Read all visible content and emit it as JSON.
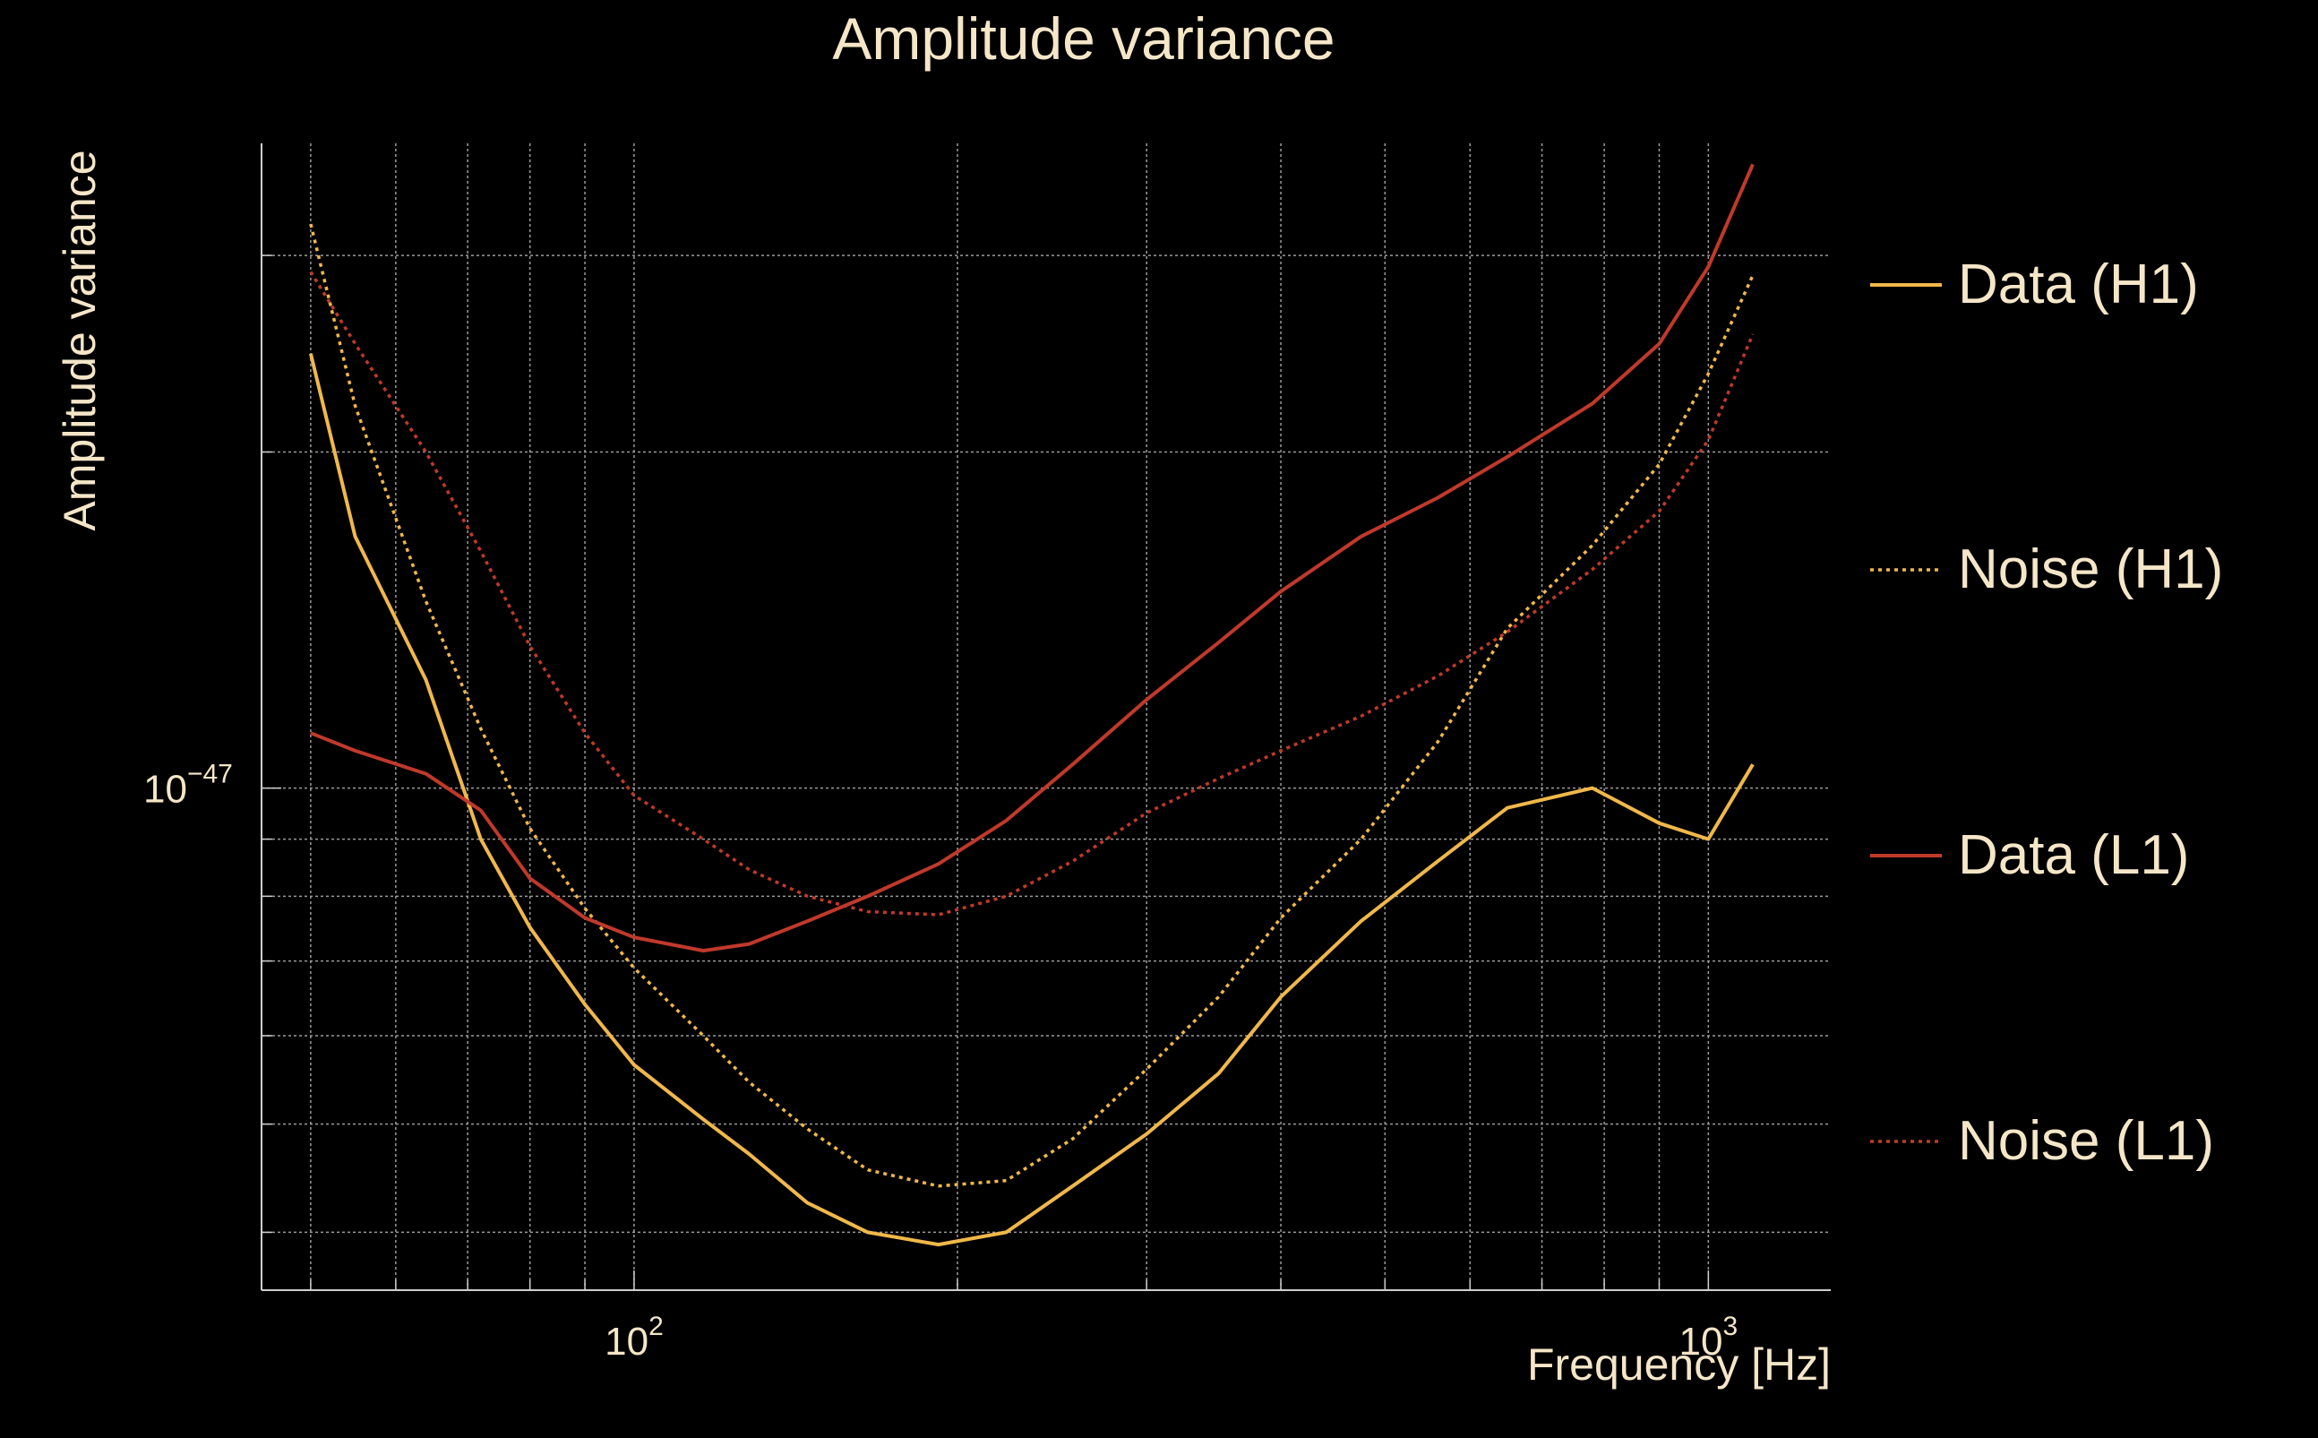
{
  "chart_data": {
    "type": "line",
    "title": "Amplitude variance",
    "xlabel": "Frequency [Hz]",
    "ylabel": "Amplitude variance",
    "x_scale": "log",
    "y_scale": "log",
    "xlim": [
      45,
      1300
    ],
    "ylim": [
      3.55e-48,
      3.78e-47
    ],
    "x_ticks": [
      {
        "value": 100,
        "base": "10",
        "exp": "2"
      },
      {
        "value": 1000,
        "base": "10",
        "exp": "3"
      }
    ],
    "y_ticks": [
      {
        "value": 1e-47,
        "base": "10",
        "exp": "−47"
      }
    ],
    "grid": true,
    "legend_position": "right",
    "x": [
      50,
      55,
      64,
      72,
      80,
      90,
      100,
      116,
      128,
      145,
      165,
      192,
      222,
      256,
      300,
      350,
      400,
      475,
      560,
      650,
      780,
      900,
      1000,
      1100
    ],
    "series": [
      {
        "name": "Data (H1)",
        "color": "#f0b84a",
        "dash": "solid",
        "values": [
          2.45e-47,
          1.68e-47,
          1.25e-47,
          9e-48,
          7.5e-48,
          6.4e-48,
          5.65e-48,
          5.05e-48,
          4.7e-48,
          4.25e-48,
          4e-48,
          3.9e-48,
          4e-48,
          4.4e-48,
          4.9e-48,
          5.55e-48,
          6.5e-48,
          7.6e-48,
          8.6e-48,
          9.6e-48,
          1e-47,
          9.3e-48,
          9e-48,
          1.05e-47
        ]
      },
      {
        "name": "Noise (H1)",
        "color": "#f0b84a",
        "dash": "dotted",
        "values": [
          3.2e-47,
          2.2e-47,
          1.47e-47,
          1.13e-47,
          9.2e-48,
          7.8e-48,
          6.9e-48,
          6e-48,
          5.45e-48,
          4.95e-48,
          4.55e-48,
          4.4e-48,
          4.45e-48,
          4.85e-48,
          5.6e-48,
          6.5e-48,
          7.65e-48,
          9e-48,
          1.1e-47,
          1.39e-47,
          1.65e-47,
          1.95e-47,
          2.35e-47,
          2.88e-47
        ]
      },
      {
        "name": "Data (L1)",
        "color": "#c0392b",
        "dash": "solid",
        "values": [
          1.12e-47,
          1.08e-47,
          1.03e-47,
          9.55e-48,
          8.3e-48,
          7.65e-48,
          7.35e-48,
          7.15e-48,
          7.25e-48,
          7.6e-48,
          8e-48,
          8.55e-48,
          9.35e-48,
          1.05e-47,
          1.2e-47,
          1.35e-47,
          1.5e-47,
          1.68e-47,
          1.82e-47,
          1.98e-47,
          2.21e-47,
          2.5e-47,
          2.93e-47,
          3.62e-47
        ]
      },
      {
        "name": "Noise (L1)",
        "color": "#c0392b",
        "dash": "dotted",
        "values": [
          2.9e-47,
          2.5e-47,
          2e-47,
          1.63e-47,
          1.34e-47,
          1.12e-47,
          9.85e-48,
          9e-48,
          8.45e-48,
          8e-48,
          7.75e-48,
          7.7e-48,
          8e-48,
          8.6e-48,
          9.5e-48,
          1.02e-47,
          1.08e-47,
          1.16e-47,
          1.26e-47,
          1.38e-47,
          1.57e-47,
          1.77e-47,
          2.05e-47,
          2.55e-47
        ]
      }
    ]
  },
  "colors": {
    "background": "#000000",
    "text": "#f5e6c8",
    "grid": "#9a9a9a",
    "axis": "#cfcfcf"
  }
}
